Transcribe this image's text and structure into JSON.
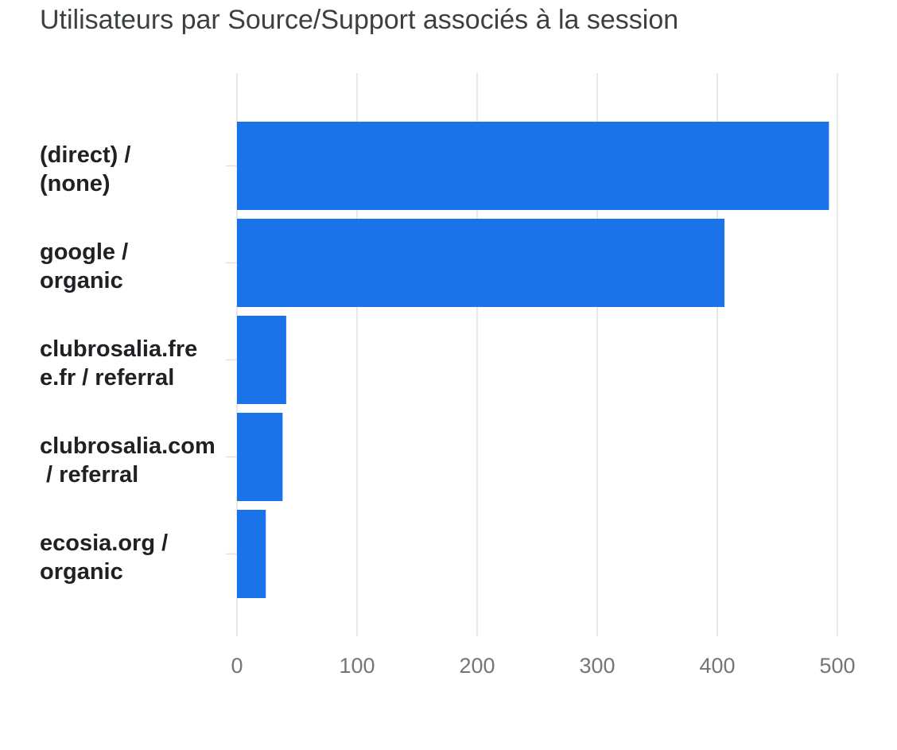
{
  "chart_data": {
    "type": "bar",
    "orientation": "horizontal",
    "title": "Utilisateurs par Source/Support associés à la session",
    "xlabel": "",
    "ylabel": "",
    "categories": [
      "(direct) /\n(none)",
      "google /\norganic",
      "clubrosalia.fre\ne.fr / referral",
      "clubrosalia.com\n / referral",
      "ecosia.org /\norganic"
    ],
    "values": [
      493,
      406,
      41,
      38,
      24
    ],
    "xlim": [
      0,
      500
    ],
    "xticks": [
      "0",
      "100",
      "200",
      "300",
      "400",
      "500"
    ],
    "grid": true,
    "legend": "none",
    "bar_color": "#1a73e8",
    "grid_color": "#e0e0e0"
  }
}
